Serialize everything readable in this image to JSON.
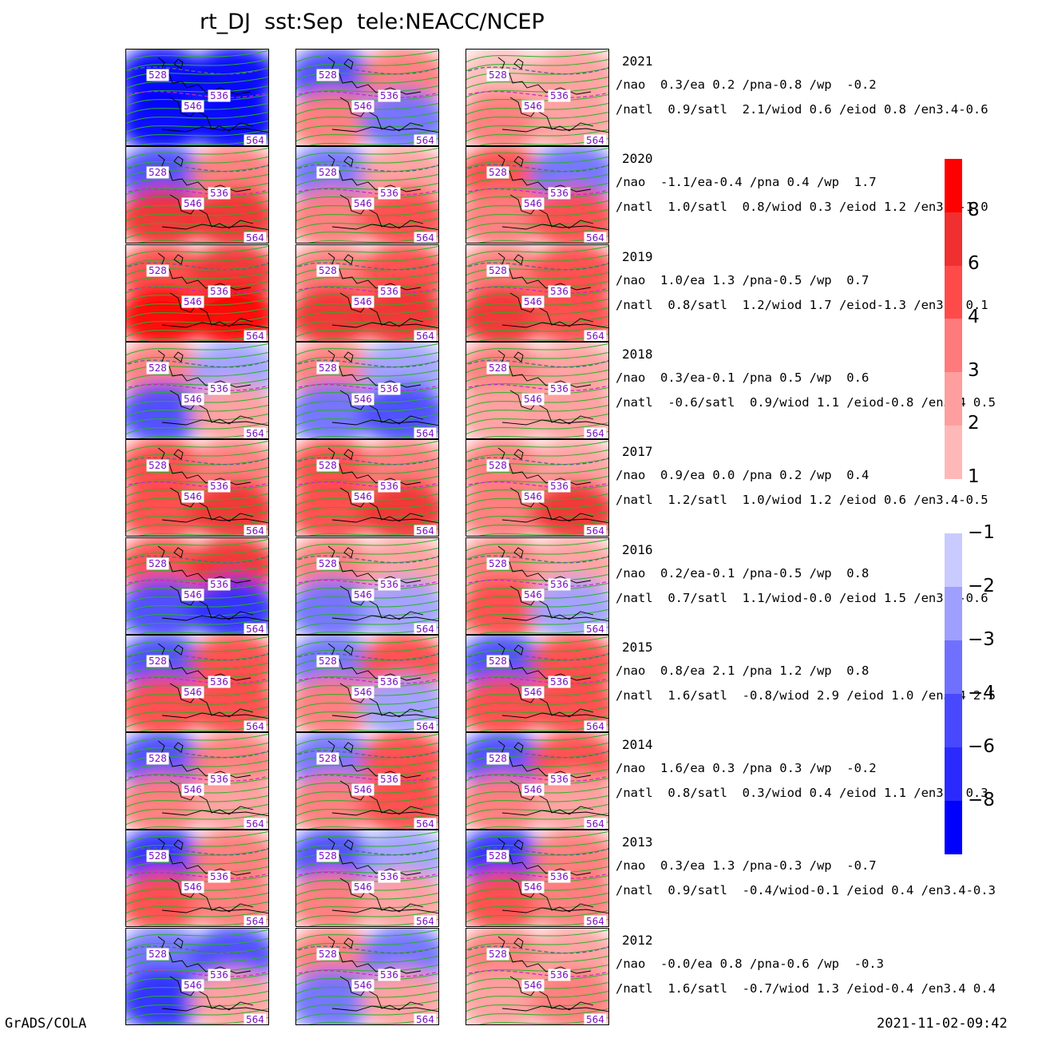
{
  "title": "rt_DJ  sst:Sep  tele:NEACC/NCEP",
  "footer": {
    "left": "GrADS/COLA",
    "right": "2021-11-02-09:42"
  },
  "contour_labels": [
    "528",
    "536",
    "546",
    "564"
  ],
  "colorbar": {
    "positive": {
      "ticks": [
        "1",
        "2",
        "3",
        "4",
        "6",
        "8"
      ],
      "colors": [
        "#ffd6d6",
        "#ffb8b8",
        "#ff9e9e",
        "#ff7a7a",
        "#ff4a4a",
        "#f03030",
        "#ff0000"
      ]
    },
    "negative": {
      "ticks": [
        "-1",
        "-2",
        "-3",
        "-4",
        "-6",
        "-8"
      ],
      "colors": [
        "#c9caff",
        "#9f9fff",
        "#7070ff",
        "#4848ff",
        "#2a2aff",
        "#0000ff"
      ]
    }
  },
  "chart_data": {
    "type": "heatmap",
    "variable": "sst:Sep",
    "teleconnection": "NEACC/NCEP",
    "rows": [
      {
        "year": "2021",
        "line1": "/nao  0.3/ea 0.2 /pna-0.8 /wp  -0.2",
        "line2": "/natl  0.9/satl  2.1/wiod 0.6 /eiod 0.8 /en3.4-0.6"
      },
      {
        "year": "2020",
        "line1": "/nao  -1.1/ea-0.4 /pna 0.4 /wp  1.7",
        "line2": "/natl  1.0/satl  0.8/wiod 0.3 /eiod 1.2 /en3.4-1.0"
      },
      {
        "year": "2019",
        "line1": "/nao  1.0/ea 1.3 /pna-0.5 /wp  0.7",
        "line2": "/natl  0.8/satl  1.2/wiod 1.7 /eiod-1.3 /en3.4 0.1"
      },
      {
        "year": "2018",
        "line1": "/nao  0.3/ea-0.1 /pna 0.5 /wp  0.6",
        "line2": "/natl  -0.6/satl  0.9/wiod 1.1 /eiod-0.8 /en3.4 0.5"
      },
      {
        "year": "2017",
        "line1": "/nao  0.9/ea 0.0 /pna 0.2 /wp  0.4",
        "line2": "/natl  1.2/satl  1.0/wiod 1.2 /eiod 0.6 /en3.4-0.5"
      },
      {
        "year": "2016",
        "line1": "/nao  0.2/ea-0.1 /pna-0.5 /wp  0.8",
        "line2": "/natl  0.7/satl  1.1/wiod-0.0 /eiod 1.5 /en3.4-0.6"
      },
      {
        "year": "2015",
        "line1": "/nao  0.8/ea 2.1 /pna 1.2 /wp  0.8",
        "line2": "/natl  1.6/satl  -0.8/wiod 2.9 /eiod 1.0 /en3.4 2.5"
      },
      {
        "year": "2014",
        "line1": "/nao  1.6/ea 0.3 /pna 0.3 /wp  -0.2",
        "line2": "/natl  0.8/satl  0.3/wiod 0.4 /eiod 1.1 /en3.4 0.3"
      },
      {
        "year": "2013",
        "line1": "/nao  0.3/ea 1.3 /pna-0.3 /wp  -0.7",
        "line2": "/natl  0.9/satl  -0.4/wiod-0.1 /eiod 0.4 /en3.4-0.3"
      },
      {
        "year": "2012",
        "line1": "/nao  -0.0/ea 0.8 /pna-0.6 /wp  -0.3",
        "line2": "/natl  1.6/satl  -0.7/wiod 1.3 /eiod-0.4 /en3.4 0.4"
      }
    ],
    "anomaly_fields": [
      [
        [
          -9,
          -9,
          -9,
          -9
        ],
        [
          -5,
          3,
          3,
          -3
        ],
        [
          1,
          2,
          3,
          2
        ]
      ],
      [
        [
          -4,
          3,
          6,
          7
        ],
        [
          -3,
          2,
          3,
          4
        ],
        [
          4,
          -3,
          3,
          5
        ]
      ],
      [
        [
          4,
          6,
          8,
          9
        ],
        [
          3,
          5,
          6,
          7
        ],
        [
          3,
          5,
          6,
          5
        ]
      ],
      [
        [
          3,
          -2,
          -4,
          2
        ],
        [
          3,
          -2,
          -3,
          -4
        ],
        [
          3,
          2,
          2,
          2
        ]
      ],
      [
        [
          5,
          3,
          5,
          6
        ],
        [
          4,
          3,
          5,
          6
        ],
        [
          3,
          2,
          3,
          6
        ]
      ],
      [
        [
          5,
          6,
          -5,
          -7
        ],
        [
          3,
          2,
          -3,
          -2
        ],
        [
          3,
          2,
          4,
          -2
        ]
      ],
      [
        [
          -5,
          5,
          5,
          4
        ],
        [
          -3,
          4,
          3,
          -2
        ],
        [
          -4,
          5,
          5,
          4
        ]
      ],
      [
        [
          -5,
          3,
          3,
          2
        ],
        [
          -3,
          4,
          3,
          4
        ],
        [
          -4,
          4,
          3,
          2
        ]
      ],
      [
        [
          -6,
          3,
          5,
          3
        ],
        [
          -4,
          -2,
          3,
          2
        ],
        [
          -7,
          3,
          4,
          3
        ]
      ],
      [
        [
          -3,
          -4,
          -6,
          2
        ],
        [
          3,
          -3,
          -3,
          2
        ],
        [
          3,
          2,
          2,
          3
        ]
      ]
    ]
  }
}
